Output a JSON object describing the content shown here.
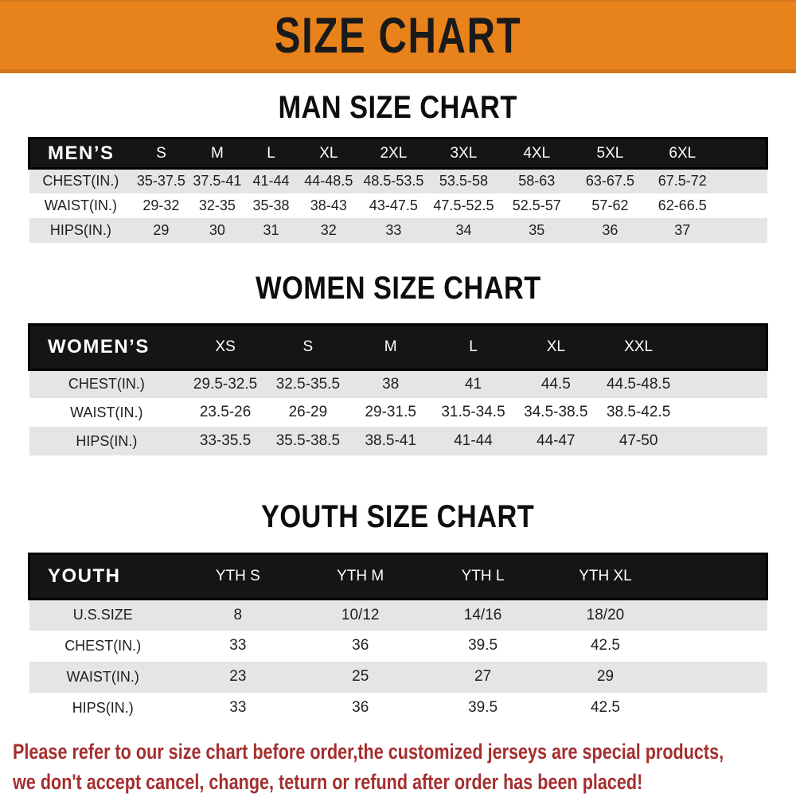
{
  "banner": {
    "title": "SIZE CHART"
  },
  "sections": {
    "men": {
      "heading": "MAN SIZE CHART",
      "table": {
        "label": "MEN’S",
        "columns": [
          "S",
          "M",
          "L",
          "XL",
          "2XL",
          "3XL",
          "4XL",
          "5XL",
          "6XL"
        ],
        "rows": [
          {
            "label": "CHEST(IN.)",
            "values": [
              "35-37.5",
              "37.5-41",
              "41-44",
              "44-48.5",
              "48.5-53.5",
              "53.5-58",
              "58-63",
              "63-67.5",
              "67.5-72"
            ]
          },
          {
            "label": "WAIST(IN.)",
            "values": [
              "29-32",
              "32-35",
              "35-38",
              "38-43",
              "43-47.5",
              "47.5-52.5",
              "52.5-57",
              "57-62",
              "62-66.5"
            ]
          },
          {
            "label": "HIPS(IN.)",
            "values": [
              "29",
              "30",
              "31",
              "32",
              "33",
              "34",
              "35",
              "36",
              "37"
            ]
          }
        ]
      }
    },
    "women": {
      "heading": "WOMEN SIZE CHART",
      "table": {
        "label": "WOMEN’S",
        "columns": [
          "XS",
          "S",
          "M",
          "L",
          "XL",
          "XXL"
        ],
        "rows": [
          {
            "label": "CHEST(IN.)",
            "values": [
              "29.5-32.5",
              "32.5-35.5",
              "38",
              "41",
              "44.5",
              "44.5-48.5"
            ]
          },
          {
            "label": "WAIST(IN.)",
            "values": [
              "23.5-26",
              "26-29",
              "29-31.5",
              "31.5-34.5",
              "34.5-38.5",
              "38.5-42.5"
            ]
          },
          {
            "label": "HIPS(IN.)",
            "values": [
              "33-35.5",
              "35.5-38.5",
              "38.5-41",
              "41-44",
              "44-47",
              "47-50"
            ]
          }
        ]
      }
    },
    "youth": {
      "heading": "YOUTH SIZE CHART",
      "table": {
        "label": "YOUTH",
        "columns": [
          "YTH S",
          "YTH M",
          "YTH L",
          "YTH XL"
        ],
        "rows": [
          {
            "label": "U.S.SIZE",
            "values": [
              "8",
              "10/12",
              "14/16",
              "18/20"
            ]
          },
          {
            "label": "CHEST(IN.)",
            "values": [
              "33",
              "36",
              "39.5",
              "42.5"
            ]
          },
          {
            "label": "WAIST(IN.)",
            "values": [
              "23",
              "25",
              "27",
              "29"
            ]
          },
          {
            "label": "HIPS(IN.)",
            "values": [
              "33",
              "36",
              "39.5",
              "42.5"
            ]
          }
        ]
      }
    }
  },
  "footer": {
    "line1": "Please refer to our size chart before order,the customized jerseys are special products,",
    "line2": "we don't accept cancel, change, teturn or refund after order has been placed!"
  },
  "colors": {
    "banner_bg": "#E8831C",
    "banner_bg_edge": "#D1751A",
    "banner_text": "#1A1A1A",
    "header_bar_bg": "#151515",
    "header_bar_text": "#FFFFFF",
    "stripe_gray": "#E5E5E5",
    "row_white": "#FFFFFF",
    "cell_text": "#1F1F1F",
    "footer_red": "#A52E2E"
  }
}
